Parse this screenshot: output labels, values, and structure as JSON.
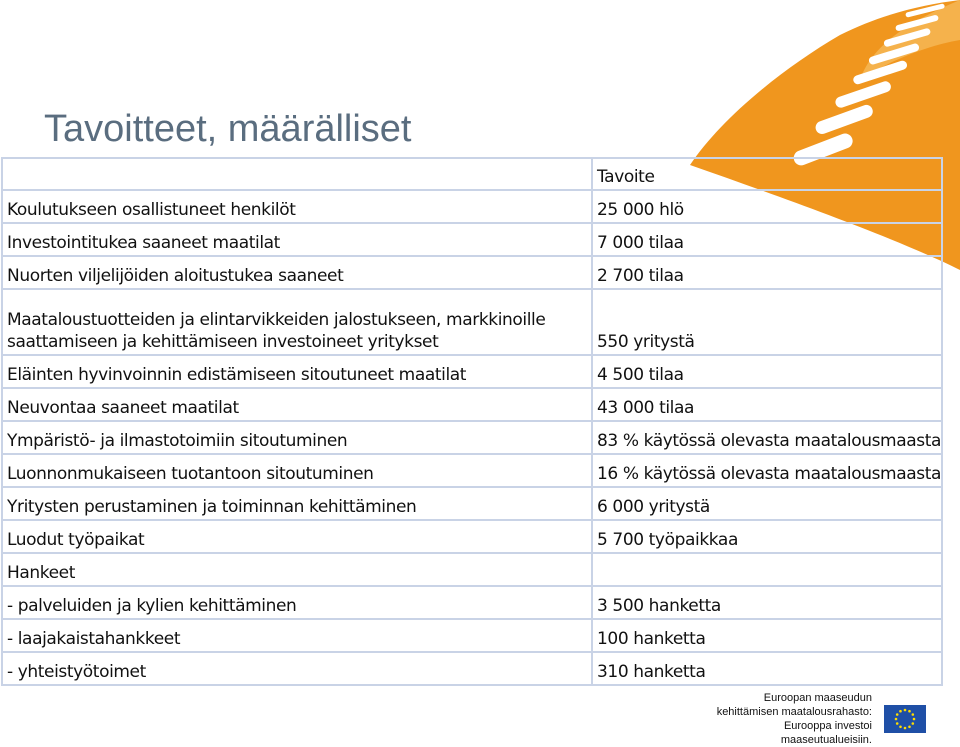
{
  "title": "Tavoitteet, määrälliset",
  "table": {
    "header_value": "Tavoite",
    "rows": [
      {
        "label": "Koulutukseen osallistuneet henkilöt",
        "value": "25 000 hlö"
      },
      {
        "label": "Investointitukea saaneet maatilat",
        "value": "7 000 tilaa"
      },
      {
        "label": "Nuorten viljelijöiden aloitustukea saaneet",
        "value": "2 700 tilaa"
      },
      {
        "label": "Maataloustuotteiden ja elintarvikkeiden jalostukseen, markkinoille saattamiseen ja kehittämiseen investoineet yritykset",
        "value": "550 yritystä"
      },
      {
        "label": "Eläinten hyvinvoinnin edistämiseen sitoutuneet maatilat",
        "value": "4 500 tilaa"
      },
      {
        "label": "Neuvontaa saaneet maatilat",
        "value": "43 000 tilaa"
      },
      {
        "label": "Ympäristö- ja ilmastotoimiin sitoutuminen",
        "value": "83 % käytössä olevasta maatalousmaasta"
      },
      {
        "label": "Luonnonmukaiseen tuotantoon sitoutuminen",
        "value": "16 % käytössä olevasta maatalousmaasta"
      },
      {
        "label": "Yritysten perustaminen ja toiminnan kehittäminen",
        "value": "6 000 yritystä"
      },
      {
        "label": "Luodut työpaikat",
        "value": "5 700 työpaikkaa"
      },
      {
        "label": "Hankeet",
        "value": ""
      },
      {
        "label": "- palveluiden ja kylien kehittäminen",
        "value": "3 500 hanketta"
      },
      {
        "label": "- laajakaistahankkeet",
        "value": "100 hanketta"
      },
      {
        "label": "- yhteistyötoimet",
        "value": "310 hanketta"
      }
    ]
  },
  "footer": {
    "line1": "Euroopan maaseudun",
    "line2": "kehittämisen maatalousrahasto:",
    "line3": "Eurooppa investoi maaseutualueisiin."
  },
  "colors": {
    "decor_orange": "#f0961e",
    "title": "#5a6d7f",
    "table_border": "#c9d3e6",
    "eu_blue": "#1f4fa6",
    "eu_stars": "#ffdd00"
  },
  "icons": {
    "decor": "orange-swoosh-graphic",
    "eu": "eu-flag-icon"
  }
}
